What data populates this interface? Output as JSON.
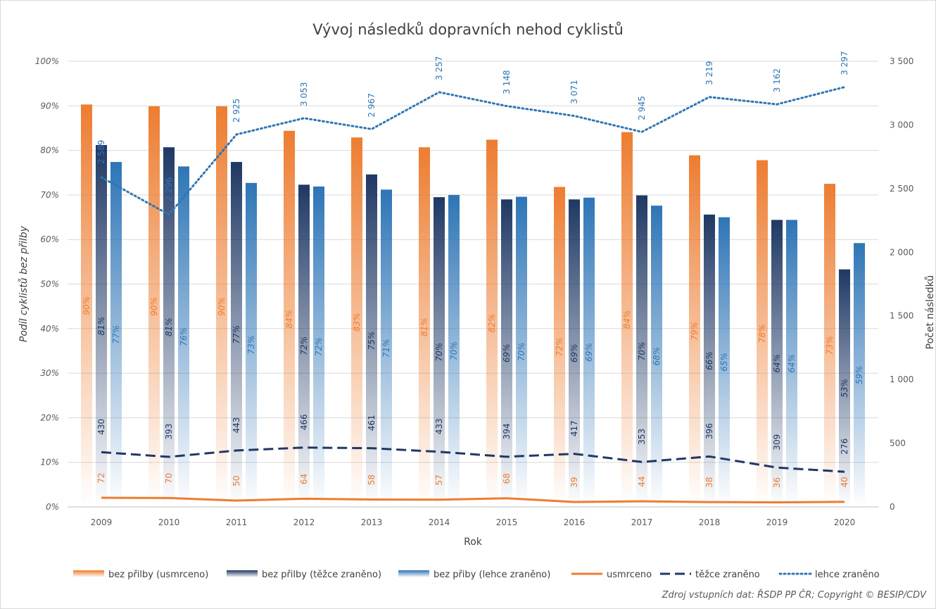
{
  "chart_data": {
    "type": "bar",
    "title": "Vývoj následků dopravních nehod cyklistů",
    "xlabel": "Rok",
    "ylabel_left": "Podíl cyklistů bez přilby",
    "ylabel_right": "Počet následků",
    "categories": [
      "2009",
      "2010",
      "2011",
      "2012",
      "2013",
      "2014",
      "2015",
      "2016",
      "2017",
      "2018",
      "2019",
      "2020"
    ],
    "y_left": {
      "range": [
        0,
        100
      ],
      "ticks": [
        0,
        10,
        20,
        30,
        40,
        50,
        60,
        70,
        80,
        90,
        100
      ],
      "tick_labels": [
        "0%",
        "10%",
        "20%",
        "30%",
        "40%",
        "50%",
        "60%",
        "70%",
        "80%",
        "90%",
        "100%"
      ]
    },
    "y_right": {
      "range": [
        0,
        3500
      ],
      "ticks": [
        0,
        500,
        1000,
        1500,
        2000,
        2500,
        3000,
        3500
      ],
      "tick_labels": [
        "0",
        "500",
        "1 000",
        "1 500",
        "2 000",
        "2 500",
        "3 000",
        "3 500"
      ]
    },
    "grid": true,
    "legend_position": "bottom",
    "bar_series": [
      {
        "name": "bez přilby (usmrceno)",
        "color": "#ED7D31",
        "values": [
          90.3,
          89.9,
          89.9,
          84.4,
          82.9,
          80.7,
          82.4,
          71.8,
          84.1,
          78.9,
          77.8,
          72.5
        ],
        "labels": [
          "90%",
          "90%",
          "90%",
          "84%",
          "83%",
          "81%",
          "82%",
          "72%",
          "84%",
          "79%",
          "78%",
          "73%"
        ]
      },
      {
        "name": "bez přilby (těžce zraněno)",
        "color": "#1F3864",
        "values": [
          81.2,
          80.7,
          77.4,
          72.3,
          74.6,
          69.5,
          69.0,
          69.0,
          69.9,
          65.6,
          64.4,
          53.3
        ],
        "labels": [
          "81%",
          "81%",
          "77%",
          "72%",
          "75%",
          "70%",
          "69%",
          "69%",
          "70%",
          "66%",
          "64%",
          "53%"
        ]
      },
      {
        "name": "bez přiby (lehce zraněno)",
        "color": "#2E75B6",
        "values": [
          77.4,
          76.4,
          72.7,
          71.9,
          71.2,
          70.0,
          69.6,
          69.4,
          67.6,
          65.0,
          64.4,
          59.2
        ],
        "labels": [
          "77%",
          "76%",
          "73%",
          "72%",
          "71%",
          "70%",
          "70%",
          "69%",
          "68%",
          "65%",
          "64%",
          "59%"
        ]
      }
    ],
    "line_series": [
      {
        "name": "usmrceno",
        "color": "#ED7D31",
        "style": "solid",
        "values": [
          72,
          70,
          50,
          64,
          58,
          57,
          68,
          39,
          44,
          38,
          36,
          40
        ],
        "labels": [
          "72",
          "70",
          "50",
          "64",
          "58",
          "57",
          "68",
          "39",
          "44",
          "38",
          "36",
          "40"
        ]
      },
      {
        "name": "těžce zraněno",
        "color": "#1F3864",
        "style": "dashed",
        "values": [
          430,
          393,
          443,
          466,
          461,
          433,
          394,
          417,
          353,
          396,
          309,
          276
        ],
        "labels": [
          "430",
          "393",
          "443",
          "466",
          "461",
          "433",
          "394",
          "417",
          "353",
          "396",
          "309",
          "276"
        ]
      },
      {
        "name": "lehce zraněno",
        "color": "#2E75B6",
        "style": "dotted",
        "values": [
          2589,
          2296,
          2925,
          3053,
          2967,
          3257,
          3148,
          3071,
          2945,
          3219,
          3162,
          3297
        ],
        "labels": [
          "2 589",
          "2 296",
          "2 925",
          "3 053",
          "2 967",
          "3 257",
          "3 148",
          "3 071",
          "2 945",
          "3 219",
          "3 162",
          "3 297"
        ]
      }
    ],
    "source_note": "Zdroj vstupních dat: ŘSDP PP ČR; Copyright © BESIP/CDV"
  }
}
